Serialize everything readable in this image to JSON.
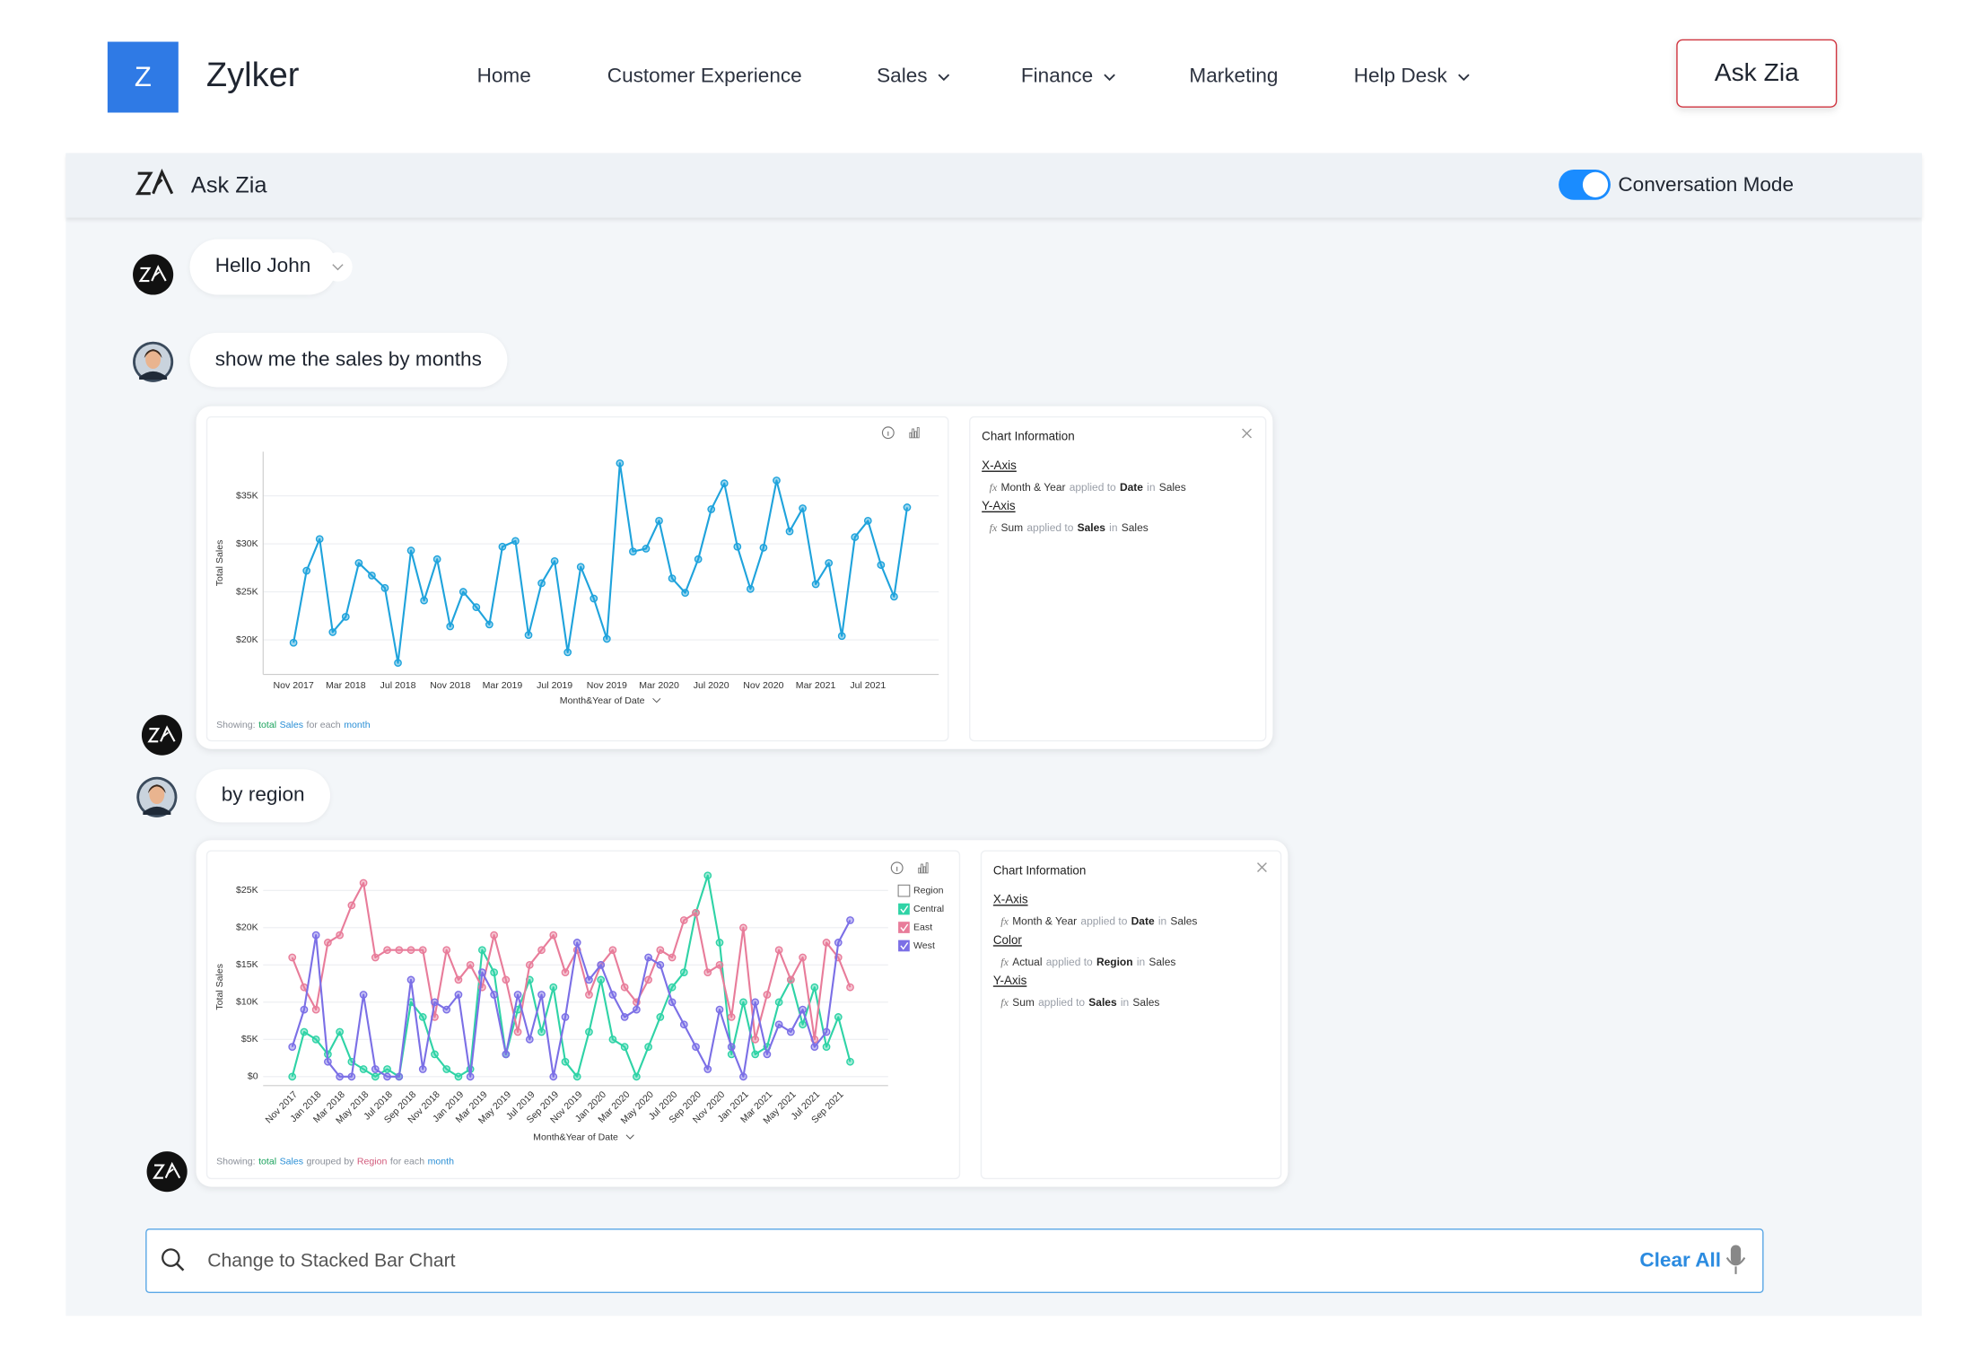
{
  "nav": {
    "logo_letter": "Z",
    "brand": "Zylker",
    "items": [
      {
        "label": "Home",
        "dropdown": false
      },
      {
        "label": "Customer Experience",
        "dropdown": false
      },
      {
        "label": "Sales",
        "dropdown": true
      },
      {
        "label": "Finance",
        "dropdown": true
      },
      {
        "label": "Marketing",
        "dropdown": false
      },
      {
        "label": "Help Desk",
        "dropdown": true
      }
    ],
    "button": "Ask Zia"
  },
  "panel": {
    "title": "Ask Zia",
    "toggle_label": "Conversation Mode",
    "toggle_on": true
  },
  "messages": [
    "Hello John",
    "show me the sales by months",
    "by region"
  ],
  "info_panels": [
    {
      "title": "Chart Information",
      "rows": [
        {
          "heading": "X-Axis",
          "parts": [
            "fx",
            "Month & Year",
            "applied to",
            "Date",
            "in",
            "Sales"
          ]
        },
        {
          "heading": "Y-Axis",
          "parts": [
            "fx",
            "Sum",
            "applied to",
            "Sales",
            "in",
            "Sales"
          ]
        }
      ]
    },
    {
      "title": "Chart Information",
      "rows": [
        {
          "heading": "X-Axis",
          "parts": [
            "fx",
            "Month & Year",
            "applied to",
            "Date",
            "in",
            "Sales"
          ]
        },
        {
          "heading": "Color",
          "parts": [
            "fx",
            "Actual",
            "applied to",
            "Region",
            "in",
            "Sales"
          ]
        },
        {
          "heading": "Y-Axis",
          "parts": [
            "fx",
            "Sum",
            "applied to",
            "Sales",
            "in",
            "Sales"
          ]
        }
      ]
    }
  ],
  "search": {
    "query": "Change to Stacked Bar Chart",
    "clear": "Clear All"
  },
  "chart_data": [
    {
      "type": "line",
      "x_label": "Month&Year of Date",
      "y_label": "Total Sales",
      "categories": [
        "Nov 2017",
        null,
        null,
        null,
        "Mar 2018",
        null,
        null,
        null,
        "Jul 2018",
        null,
        null,
        null,
        "Nov 2018",
        null,
        null,
        null,
        "Mar 2019",
        null,
        null,
        null,
        "Jul 2019",
        null,
        null,
        null,
        "Nov 2019",
        null,
        null,
        null,
        "Mar 2020",
        null,
        null,
        null,
        "Jul 2020",
        null,
        null,
        null,
        "Nov 2020",
        null,
        null,
        null,
        "Mar 2021",
        null,
        null,
        null,
        "Jul 2021",
        null,
        null,
        null
      ],
      "values": [
        19700,
        27200,
        30500,
        20800,
        22400,
        28000,
        26700,
        25400,
        17600,
        29300,
        24100,
        28400,
        21400,
        25000,
        23400,
        21600,
        29700,
        30300,
        20500,
        25900,
        28200,
        18700,
        27600,
        24300,
        20100,
        38400,
        29200,
        29500,
        32400,
        26400,
        24900,
        28400,
        33600,
        36300,
        29700,
        25300,
        29600,
        36600,
        31300,
        33700,
        25800,
        28000,
        20400,
        30700,
        32400,
        27800,
        24500,
        33800
      ],
      "color": "#1fa3dc",
      "ylim": [
        16400,
        39600
      ],
      "yticks": [
        {
          "value": 20000,
          "label": "$20K"
        },
        {
          "value": 25000,
          "label": "$25K"
        },
        {
          "value": 30000,
          "label": "$30K"
        },
        {
          "value": 35000,
          "label": "$35K"
        }
      ],
      "grid": true,
      "caption": [
        {
          "text": "Showing:",
          "color": "#8a8f98"
        },
        {
          "text": "total",
          "color": "#1aa25c"
        },
        {
          "text": "Sales",
          "color": "#2a8fd6"
        },
        {
          "text": "for each",
          "color": "#8a8f98"
        },
        {
          "text": "month",
          "color": "#2a8fd6"
        }
      ]
    },
    {
      "type": "line",
      "x_label": "Month&Year of Date",
      "y_label": "Total Sales",
      "categories": [
        "Nov 2017",
        null,
        "Jan 2018",
        null,
        "Mar 2018",
        null,
        "May 2018",
        null,
        "Jul 2018",
        null,
        "Sep 2018",
        null,
        "Nov 2018",
        null,
        "Jan 2019",
        null,
        "Mar 2019",
        null,
        "May 2019",
        null,
        "Jul 2019",
        null,
        "Sep 2019",
        null,
        "Nov 2019",
        null,
        "Jan 2020",
        null,
        "Mar 2020",
        null,
        "May 2020",
        null,
        "Jul 2020",
        null,
        "Sep 2020",
        null,
        "Nov 2020",
        null,
        "Jan 2021",
        null,
        "Mar 2021",
        null,
        "May 2021",
        null,
        "Jul 2021",
        null,
        "Sep 2021",
        null
      ],
      "series": [
        {
          "name": "Central",
          "color": "#2fd3a6",
          "values": [
            0,
            6000,
            5000,
            3000,
            6000,
            2000,
            1000,
            0,
            1000,
            0,
            10000,
            8000,
            3000,
            1000,
            0,
            1000,
            17000,
            14000,
            3000,
            9000,
            13000,
            6000,
            12000,
            2000,
            0,
            6000,
            13000,
            5000,
            4000,
            0,
            4000,
            8000,
            12000,
            14000,
            22000,
            27000,
            18000,
            3000,
            10000,
            3000,
            4000,
            10000,
            13000,
            7000,
            12000,
            4000,
            8000,
            2000
          ]
        },
        {
          "name": "East",
          "color": "#e87c9a",
          "values": [
            16000,
            12000,
            9000,
            18000,
            19000,
            23000,
            26000,
            16000,
            17000,
            17000,
            17000,
            17000,
            8000,
            17000,
            13000,
            15000,
            12000,
            19000,
            13000,
            6000,
            15000,
            17000,
            19000,
            14000,
            17000,
            11000,
            15000,
            17000,
            12000,
            10000,
            13000,
            17000,
            16000,
            21000,
            22000,
            14000,
            15000,
            8000,
            20000,
            5000,
            11000,
            17000,
            13000,
            16000,
            5000,
            18000,
            16000,
            12000
          ]
        },
        {
          "name": "West",
          "color": "#7b6fe6",
          "values": [
            4000,
            9000,
            19000,
            2000,
            0,
            0,
            11000,
            1000,
            0,
            0,
            13000,
            1000,
            10000,
            9000,
            11000,
            0,
            14000,
            11000,
            3000,
            11000,
            5000,
            11000,
            0,
            8000,
            18000,
            13000,
            15000,
            11000,
            8000,
            9000,
            16000,
            15000,
            10000,
            7000,
            4000,
            1000,
            9000,
            4000,
            0,
            10000,
            3000,
            7000,
            6000,
            9000,
            4000,
            6000,
            18000,
            21000
          ]
        }
      ],
      "legend_title": "Region",
      "legend": "right",
      "ylim": [
        -1200,
        27000
      ],
      "yticks": [
        {
          "value": 0,
          "label": "$0"
        },
        {
          "value": 5000,
          "label": "$5K"
        },
        {
          "value": 10000,
          "label": "$10K"
        },
        {
          "value": 15000,
          "label": "$15K"
        },
        {
          "value": 20000,
          "label": "$20K"
        },
        {
          "value": 25000,
          "label": "$25K"
        }
      ],
      "grid": true,
      "caption": [
        {
          "text": "Showing:",
          "color": "#8a8f98"
        },
        {
          "text": "total",
          "color": "#1aa25c"
        },
        {
          "text": "Sales",
          "color": "#2a8fd6"
        },
        {
          "text": "grouped by",
          "color": "#8a8f98"
        },
        {
          "text": "Region",
          "color": "#d25a7b"
        },
        {
          "text": "for each",
          "color": "#8a8f98"
        },
        {
          "text": "month",
          "color": "#2a8fd6"
        }
      ]
    }
  ]
}
